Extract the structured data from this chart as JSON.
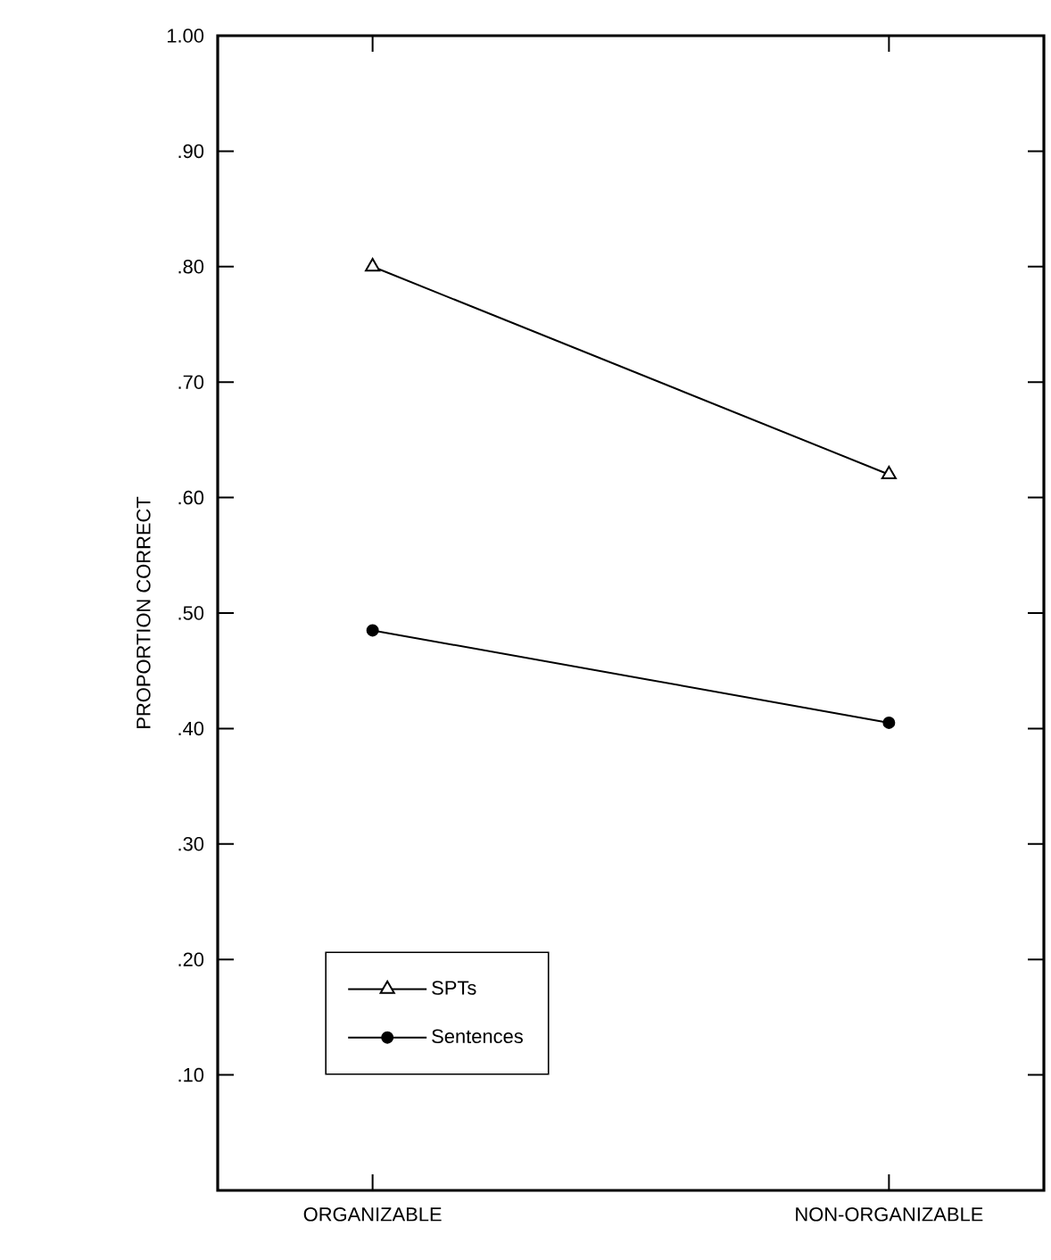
{
  "chart_data": {
    "type": "line",
    "ylabel": "PROPORTION CORRECT",
    "categories": [
      "ORGANIZABLE",
      "NON-ORGANIZABLE"
    ],
    "series": [
      {
        "name": "SPTs",
        "color": "#000000",
        "marker": "triangle",
        "values": [
          0.8,
          0.62
        ]
      },
      {
        "name": "Sentences",
        "color": "#000000",
        "marker": "circle",
        "values": [
          0.485,
          0.405
        ]
      }
    ],
    "ylim": [
      0,
      1
    ],
    "yticks": [
      {
        "value": 0.1,
        "label": ".10"
      },
      {
        "value": 0.2,
        "label": ".20"
      },
      {
        "value": 0.3,
        "label": ".30"
      },
      {
        "value": 0.4,
        "label": ".40"
      },
      {
        "value": 0.5,
        "label": ".50"
      },
      {
        "value": 0.6,
        "label": ".60"
      },
      {
        "value": 0.7,
        "label": ".70"
      },
      {
        "value": 0.8,
        "label": ".80"
      },
      {
        "value": 0.9,
        "label": ".90"
      },
      {
        "value": 1.0,
        "label": "1.00"
      }
    ],
    "legend": "bottom left",
    "grid": false,
    "line_style": "solid"
  }
}
